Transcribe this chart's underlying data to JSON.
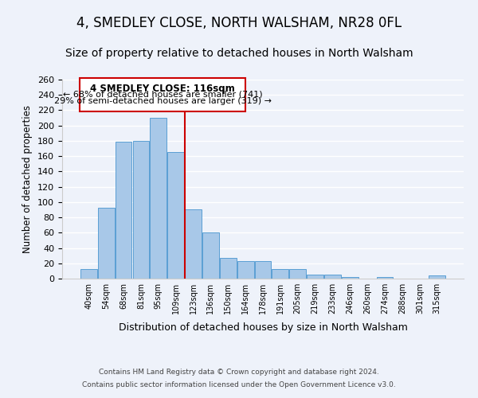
{
  "title": "4, SMEDLEY CLOSE, NORTH WALSHAM, NR28 0FL",
  "subtitle": "Size of property relative to detached houses in North Walsham",
  "xlabel": "Distribution of detached houses by size in North Walsham",
  "ylabel": "Number of detached properties",
  "bar_labels": [
    "40sqm",
    "54sqm",
    "68sqm",
    "81sqm",
    "95sqm",
    "109sqm",
    "123sqm",
    "136sqm",
    "150sqm",
    "164sqm",
    "178sqm",
    "191sqm",
    "205sqm",
    "219sqm",
    "233sqm",
    "246sqm",
    "260sqm",
    "274sqm",
    "288sqm",
    "301sqm",
    "315sqm"
  ],
  "bar_heights": [
    13,
    93,
    179,
    180,
    210,
    165,
    90,
    60,
    27,
    23,
    23,
    13,
    13,
    5,
    5,
    2,
    0,
    2,
    0,
    0,
    4
  ],
  "bar_color": "#a8c8e8",
  "bar_edge_color": "#5a9fd4",
  "vline_x": 5.5,
  "vline_color": "#cc0000",
  "annotation_title": "4 SMEDLEY CLOSE: 116sqm",
  "annotation_line1": "← 68% of detached houses are smaller (741)",
  "annotation_line2": "29% of semi-detached houses are larger (319) →",
  "annotation_box_color": "#ffffff",
  "annotation_box_edge": "#cc0000",
  "ylim": [
    0,
    260
  ],
  "yticks": [
    0,
    20,
    40,
    60,
    80,
    100,
    120,
    140,
    160,
    180,
    200,
    220,
    240,
    260
  ],
  "footer1": "Contains HM Land Registry data © Crown copyright and database right 2024.",
  "footer2": "Contains public sector information licensed under the Open Government Licence v3.0.",
  "bg_color": "#eef2fa",
  "title_fontsize": 12,
  "subtitle_fontsize": 10
}
